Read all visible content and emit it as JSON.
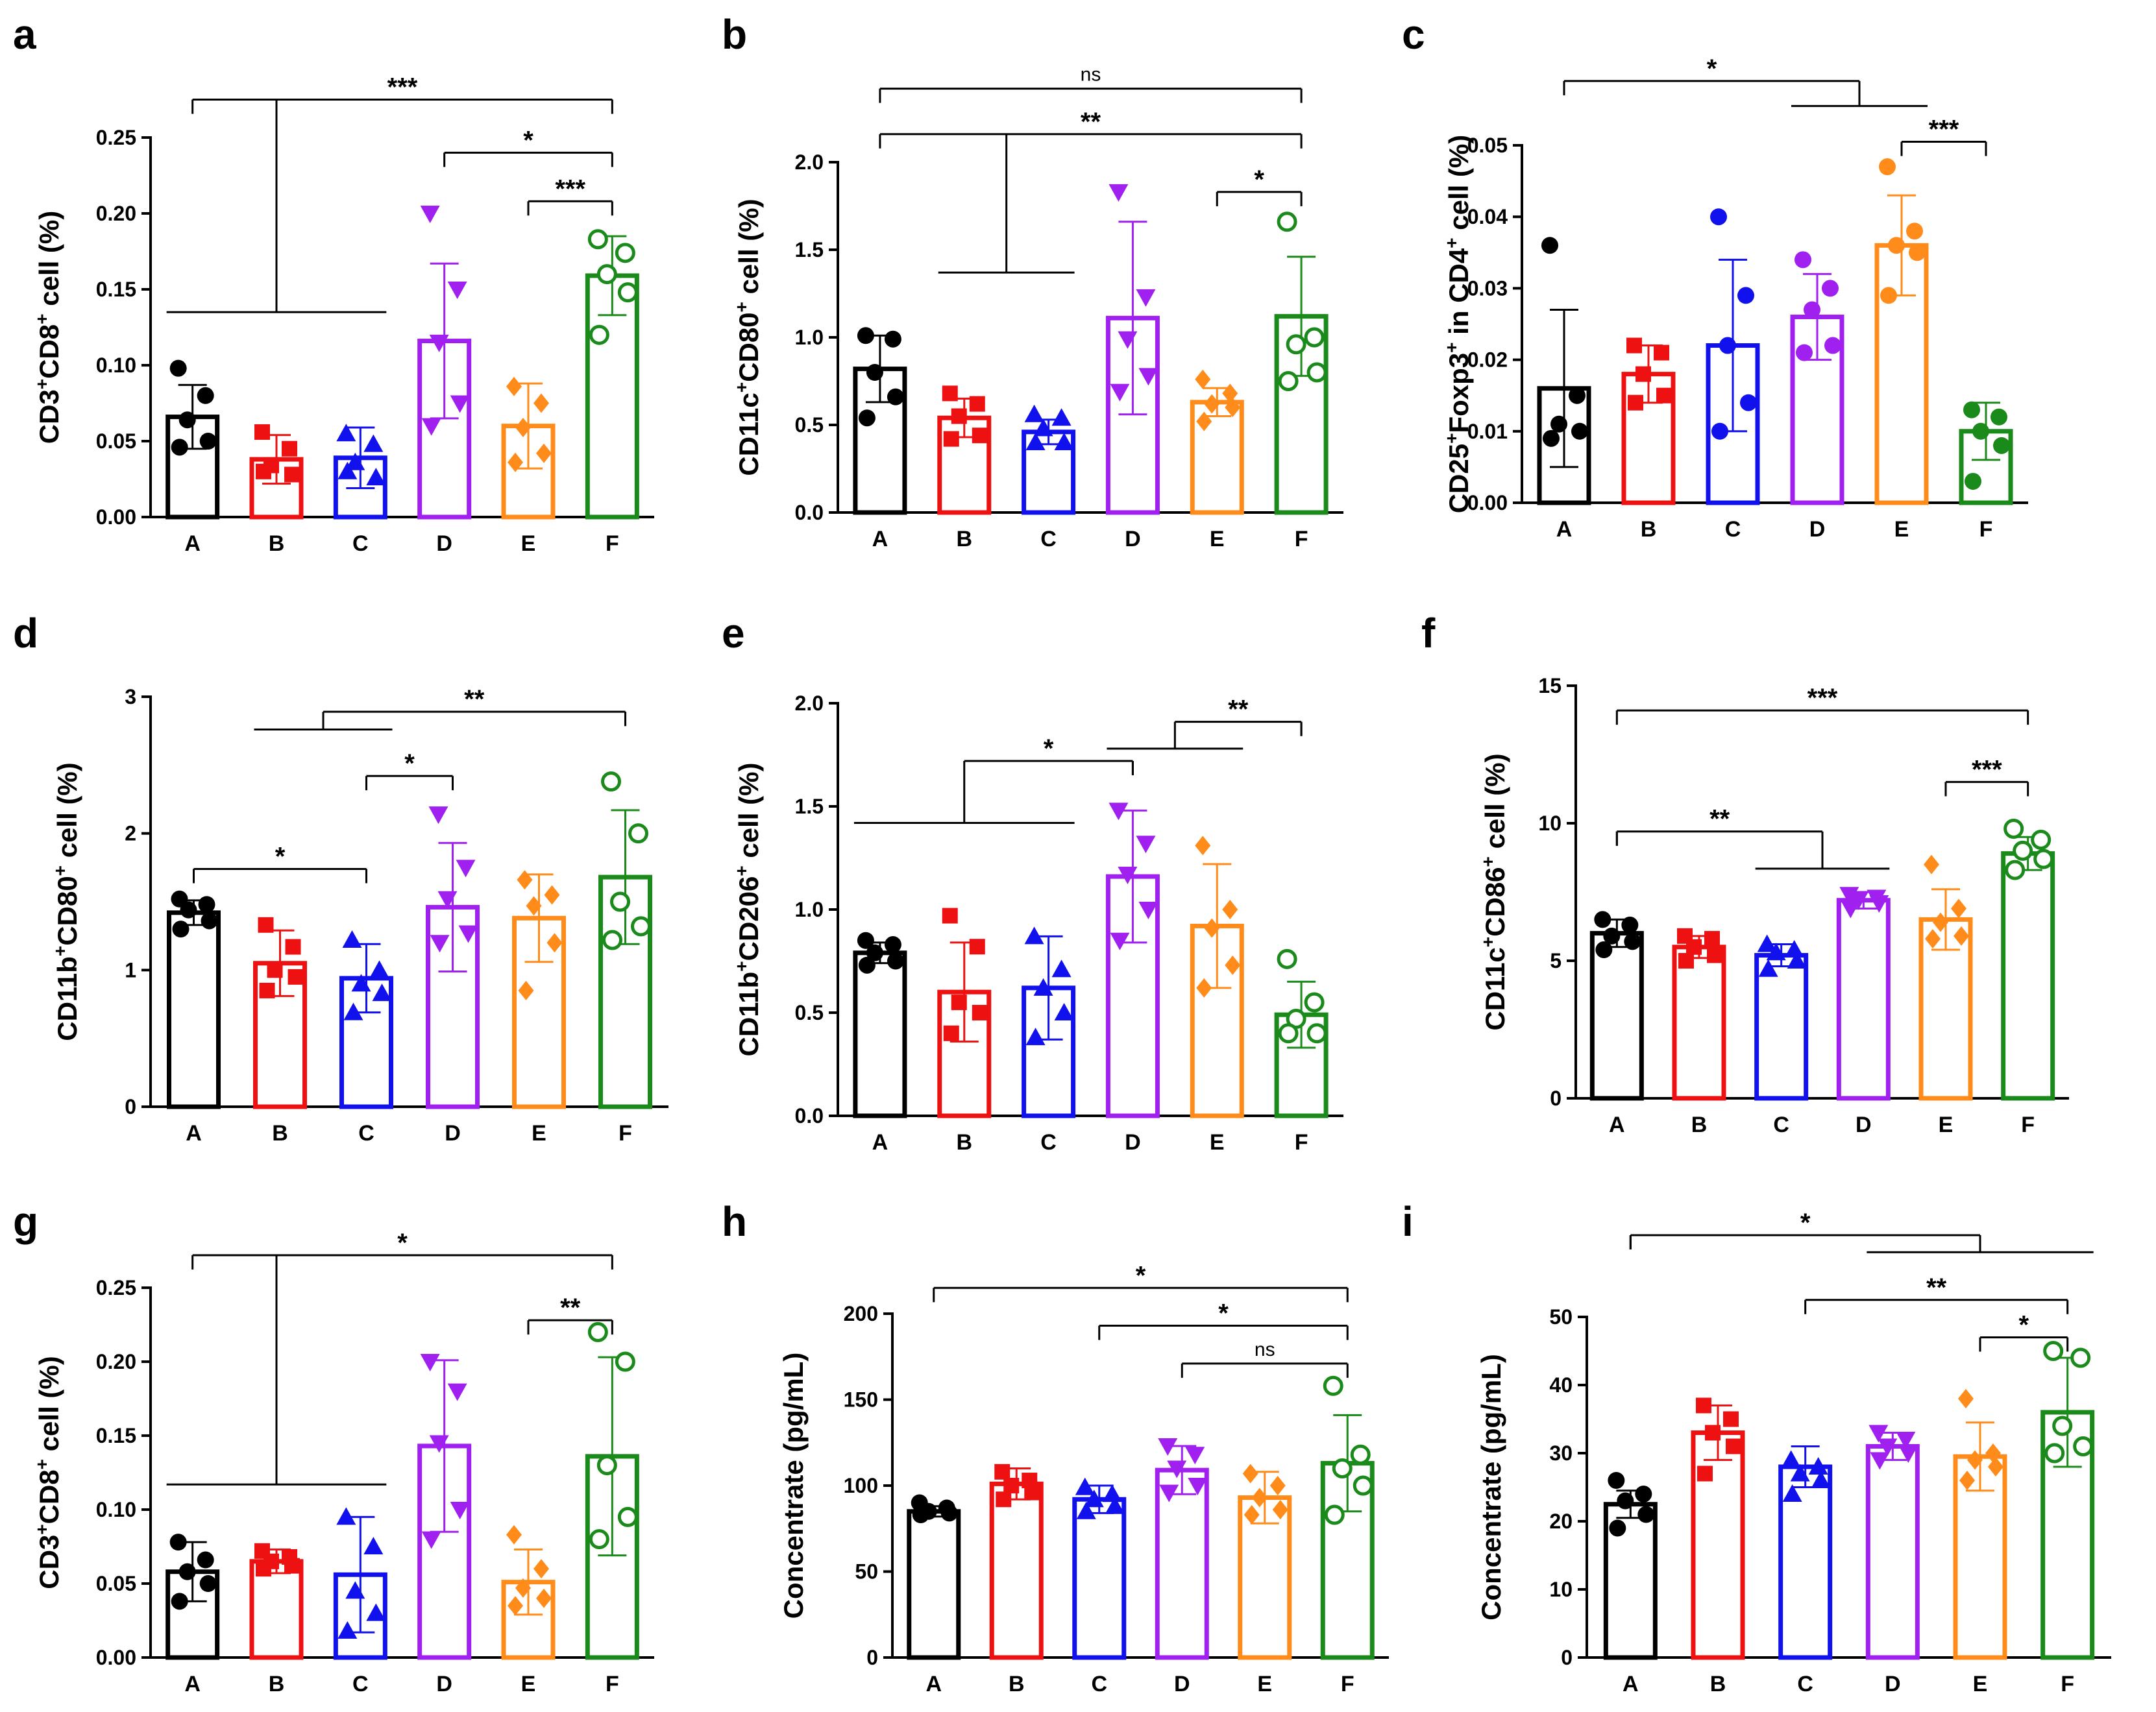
{
  "figure": {
    "panels": [
      "a",
      "b",
      "c",
      "d",
      "e",
      "f",
      "g",
      "h",
      "i"
    ]
  },
  "chart_data": [
    {
      "panel": "a",
      "type": "bar",
      "categories": [
        "A",
        "B",
        "C",
        "D",
        "E",
        "F"
      ],
      "values": [
        0.066,
        0.038,
        0.039,
        0.116,
        0.06,
        0.159
      ],
      "errors": [
        0.021,
        0.016,
        0.02,
        0.051,
        0.028,
        0.026
      ],
      "points": [
        [
          0.098,
          0.08,
          0.064,
          0.05,
          0.046
        ],
        [
          0.056,
          0.045,
          0.034,
          0.028,
          0.03
        ],
        [
          0.055,
          0.048,
          0.036,
          0.026,
          0.03
        ],
        [
          0.2,
          0.15,
          0.115,
          0.075,
          0.06
        ],
        [
          0.086,
          0.075,
          0.059,
          0.042,
          0.036
        ],
        [
          0.183,
          0.174,
          0.16,
          0.148,
          0.12
        ]
      ],
      "markers": [
        "circle",
        "square",
        "triangle",
        "tri-down",
        "diamond",
        "circle-open"
      ],
      "ylabel_parts": [
        [
          "CD3",
          ""
        ],
        [
          "+",
          "sup"
        ],
        [
          "CD8",
          ""
        ],
        [
          "+",
          "sup"
        ],
        [
          " cell (%)",
          ""
        ]
      ],
      "ylim": [
        0,
        0.25
      ],
      "ticks": [
        0,
        0.05,
        0.1,
        0.15,
        0.2,
        0.25
      ],
      "tick_labels": [
        "0.00",
        "0.05",
        "0.10",
        "0.15",
        "0.20",
        "0.25"
      ],
      "brackets": [
        {
          "from": 0,
          "to": 5,
          "y": 0.275,
          "group_from": 0,
          "group_to": 2,
          "group_y": 0.135,
          "label": "***"
        },
        {
          "from": 3,
          "to": 5,
          "y": 0.24,
          "label": "*"
        },
        {
          "from": 4,
          "to": 5,
          "y": 0.208,
          "label": "***"
        }
      ]
    },
    {
      "panel": "b",
      "type": "bar",
      "categories": [
        "A",
        "B",
        "C",
        "D",
        "E",
        "F"
      ],
      "values": [
        0.82,
        0.54,
        0.46,
        1.11,
        0.63,
        1.12
      ],
      "errors": [
        0.19,
        0.11,
        0.07,
        0.55,
        0.08,
        0.34
      ],
      "points": [
        [
          1.01,
          0.99,
          0.8,
          0.66,
          0.54
        ],
        [
          0.68,
          0.62,
          0.55,
          0.44,
          0.42
        ],
        [
          0.56,
          0.54,
          0.48,
          0.4,
          0.4
        ],
        [
          1.83,
          1.23,
          0.99,
          0.78,
          0.69
        ],
        [
          0.76,
          0.68,
          0.62,
          0.6,
          0.52
        ],
        [
          1.66,
          1.0,
          0.96,
          0.8,
          0.75
        ]
      ],
      "markers": [
        "circle",
        "square",
        "triangle",
        "tri-down",
        "diamond",
        "circle-open"
      ],
      "ylabel_parts": [
        [
          "CD11c",
          ""
        ],
        [
          "+",
          "sup"
        ],
        [
          "CD80",
          ""
        ],
        [
          "+",
          "sup"
        ],
        [
          " cell (%)",
          ""
        ]
      ],
      "ylim": [
        0,
        2.0
      ],
      "ticks": [
        0,
        0.5,
        1.0,
        1.5,
        2.0
      ],
      "tick_labels": [
        "0.0",
        "0.5",
        "1.0",
        "1.5",
        "2.0"
      ],
      "brackets": [
        {
          "from": 0,
          "to": 5,
          "y": 2.42,
          "label": "ns"
        },
        {
          "from": 0,
          "to": 5,
          "y": 2.16,
          "group_from": 1,
          "group_to": 2,
          "group_y": 1.37,
          "label": "**"
        },
        {
          "from": 4,
          "to": 5,
          "y": 1.83,
          "label": "*"
        }
      ]
    },
    {
      "panel": "c",
      "type": "bar",
      "categories": [
        "A",
        "B",
        "C",
        "D",
        "E",
        "F"
      ],
      "values": [
        0.016,
        0.018,
        0.022,
        0.026,
        0.036,
        0.01
      ],
      "errors": [
        0.011,
        0.004,
        0.012,
        0.006,
        0.007,
        0.004
      ],
      "points": [
        [
          0.036,
          0.015,
          0.011,
          0.01,
          0.009
        ],
        [
          0.022,
          0.021,
          0.018,
          0.015,
          0.014
        ],
        [
          0.04,
          0.029,
          0.022,
          0.014,
          0.01
        ],
        [
          0.034,
          0.03,
          0.027,
          0.022,
          0.021
        ],
        [
          0.047,
          0.038,
          0.036,
          0.035,
          0.029
        ],
        [
          0.013,
          0.012,
          0.01,
          0.008,
          0.003
        ]
      ],
      "markers": [
        "circle",
        "square",
        "circle",
        "circle",
        "circle",
        "circle"
      ],
      "ylabel_parts": [
        [
          "CD25",
          ""
        ],
        [
          "+",
          "sup"
        ],
        [
          "Foxp3",
          ""
        ],
        [
          "+",
          "sup"
        ],
        [
          " in CD4",
          ""
        ],
        [
          "+",
          "sup"
        ],
        [
          " cell (%)",
          ""
        ]
      ],
      "ylim": [
        0,
        0.05
      ],
      "ticks": [
        0,
        0.01,
        0.02,
        0.03,
        0.04,
        0.05
      ],
      "tick_labels": [
        "0.00",
        "0.01",
        "0.02",
        "0.03",
        "0.04",
        "0.05"
      ],
      "brackets": [
        {
          "from": 0,
          "to": 0,
          "y": 0.059,
          "group_from": 3,
          "group_to": 4,
          "group_y": 0.0555,
          "label": "*"
        },
        {
          "from": 4,
          "to": 5,
          "y": 0.0505,
          "label": "***"
        }
      ]
    },
    {
      "panel": "d",
      "type": "bar",
      "categories": [
        "A",
        "B",
        "C",
        "D",
        "E",
        "F"
      ],
      "values": [
        1.42,
        1.05,
        0.94,
        1.46,
        1.38,
        1.68
      ],
      "errors": [
        0.09,
        0.24,
        0.25,
        0.47,
        0.32,
        0.49
      ],
      "points": [
        [
          1.52,
          1.48,
          1.44,
          1.36,
          1.3
        ],
        [
          1.33,
          1.17,
          1.0,
          0.95,
          0.85
        ],
        [
          1.22,
          1.0,
          0.9,
          0.83,
          0.69
        ],
        [
          2.14,
          1.75,
          1.52,
          1.27,
          1.2
        ],
        [
          1.66,
          1.55,
          1.47,
          1.2,
          0.85
        ],
        [
          2.38,
          2.0,
          1.5,
          1.32,
          1.22
        ]
      ],
      "markers": [
        "circle",
        "square",
        "triangle",
        "tri-down",
        "diamond",
        "circle-open"
      ],
      "ylabel_parts": [
        [
          "CD11b",
          ""
        ],
        [
          "+",
          "sup"
        ],
        [
          "CD80",
          ""
        ],
        [
          "+",
          "sup"
        ],
        [
          " cell (%)",
          ""
        ]
      ],
      "ylim": [
        0,
        3
      ],
      "ticks": [
        0,
        1,
        2,
        3
      ],
      "tick_labels": [
        "0",
        "1",
        "2",
        "3"
      ],
      "brackets": [
        {
          "from": 5,
          "to": 5,
          "y": 2.89,
          "group_from": 1,
          "group_to": 2,
          "group_y": 2.76,
          "label": "**"
        },
        {
          "from": 2,
          "to": 3,
          "y": 2.42,
          "label": "*"
        },
        {
          "from": 0,
          "to": 2,
          "y": 1.74,
          "label": "*"
        }
      ]
    },
    {
      "panel": "e",
      "type": "bar",
      "categories": [
        "A",
        "B",
        "C",
        "D",
        "E",
        "F"
      ],
      "values": [
        0.79,
        0.6,
        0.62,
        1.16,
        0.92,
        0.49
      ],
      "errors": [
        0.05,
        0.24,
        0.25,
        0.32,
        0.3,
        0.16
      ],
      "points": [
        [
          0.85,
          0.83,
          0.79,
          0.75,
          0.73
        ],
        [
          0.97,
          0.82,
          0.55,
          0.5,
          0.4
        ],
        [
          0.87,
          0.71,
          0.62,
          0.5,
          0.38
        ],
        [
          1.48,
          1.32,
          1.17,
          1.0,
          0.85
        ],
        [
          1.31,
          1.0,
          0.91,
          0.73,
          0.62
        ],
        [
          0.76,
          0.55,
          0.47,
          0.4,
          0.4
        ]
      ],
      "markers": [
        "circle",
        "square",
        "triangle",
        "tri-down",
        "diamond",
        "circle-open"
      ],
      "ylabel_parts": [
        [
          "CD11b",
          ""
        ],
        [
          "+",
          "sup"
        ],
        [
          "CD206",
          ""
        ],
        [
          "+",
          "sup"
        ],
        [
          " cell (%)",
          ""
        ]
      ],
      "ylim": [
        0,
        2.0
      ],
      "ticks": [
        0,
        0.5,
        1.0,
        1.5,
        2.0
      ],
      "tick_labels": [
        "0.0",
        "0.5",
        "1.0",
        "1.5",
        "2.0"
      ],
      "brackets": [
        {
          "from": 3,
          "to": 3,
          "y": 1.72,
          "group_from": 0,
          "group_to": 2,
          "group_y": 1.42,
          "label": "*"
        },
        {
          "from": 5,
          "to": 5,
          "y": 1.91,
          "group_from": 3,
          "group_to": 4,
          "group_y": 1.78,
          "label": "**"
        }
      ]
    },
    {
      "panel": "f",
      "type": "bar",
      "categories": [
        "A",
        "B",
        "C",
        "D",
        "E",
        "F"
      ],
      "values": [
        6.0,
        5.5,
        5.2,
        7.2,
        6.5,
        8.9
      ],
      "errors": [
        0.5,
        0.4,
        0.4,
        0.3,
        1.1,
        0.6
      ],
      "points": [
        [
          6.5,
          6.3,
          5.9,
          5.7,
          5.4
        ],
        [
          5.9,
          5.8,
          5.5,
          5.2,
          5.0
        ],
        [
          5.6,
          5.4,
          5.3,
          5.0,
          4.7
        ],
        [
          7.4,
          7.3,
          7.2,
          7.1,
          6.9
        ],
        [
          8.5,
          6.9,
          6.4,
          5.9,
          5.8
        ],
        [
          9.8,
          9.4,
          9.0,
          8.7,
          8.3
        ]
      ],
      "markers": [
        "circle",
        "square",
        "triangle",
        "tri-down",
        "diamond",
        "circle-open"
      ],
      "ylabel_parts": [
        [
          "CD11c",
          ""
        ],
        [
          "+",
          "sup"
        ],
        [
          "CD86",
          ""
        ],
        [
          "+",
          "sup"
        ],
        [
          " cell (%)",
          ""
        ]
      ],
      "ylim": [
        0,
        15
      ],
      "ticks": [
        0,
        5,
        10,
        15
      ],
      "tick_labels": [
        "0",
        "5",
        "10",
        "15"
      ],
      "brackets": [
        {
          "from": 0,
          "to": 5,
          "y": 14.1,
          "label": "***"
        },
        {
          "from": 4,
          "to": 5,
          "y": 11.5,
          "label": "***"
        },
        {
          "from": 0,
          "to": 0,
          "y": 9.7,
          "group_from": 2,
          "group_to": 3,
          "group_y": 8.35,
          "label": "**"
        }
      ]
    },
    {
      "panel": "g",
      "type": "bar",
      "categories": [
        "A",
        "B",
        "C",
        "D",
        "E",
        "F"
      ],
      "values": [
        0.058,
        0.065,
        0.056,
        0.143,
        0.051,
        0.136
      ],
      "errors": [
        0.02,
        0.008,
        0.039,
        0.058,
        0.022,
        0.067
      ],
      "points": [
        [
          0.078,
          0.066,
          0.058,
          0.05,
          0.038
        ],
        [
          0.072,
          0.068,
          0.065,
          0.062,
          0.06
        ],
        [
          0.095,
          0.075,
          0.045,
          0.03,
          0.018
        ],
        [
          0.2,
          0.18,
          0.145,
          0.1,
          0.08
        ],
        [
          0.083,
          0.06,
          0.047,
          0.04,
          0.035
        ],
        [
          0.22,
          0.2,
          0.13,
          0.095,
          0.08
        ]
      ],
      "markers": [
        "circle",
        "square",
        "triangle",
        "tri-down",
        "diamond",
        "circle-open"
      ],
      "ylabel_parts": [
        [
          "CD3",
          ""
        ],
        [
          "+",
          "sup"
        ],
        [
          "CD8",
          ""
        ],
        [
          "+",
          "sup"
        ],
        [
          " cell (%)",
          ""
        ]
      ],
      "ylim": [
        0,
        0.25
      ],
      "ticks": [
        0,
        0.05,
        0.1,
        0.15,
        0.2,
        0.25
      ],
      "tick_labels": [
        "0.00",
        "0.05",
        "0.10",
        "0.15",
        "0.20",
        "0.25"
      ],
      "brackets": [
        {
          "from": 0,
          "to": 5,
          "y": 0.272,
          "group_from": 0,
          "group_to": 2,
          "group_y": 0.117,
          "label": "*"
        },
        {
          "from": 4,
          "to": 5,
          "y": 0.228,
          "label": "**"
        }
      ]
    },
    {
      "panel": "h",
      "type": "bar",
      "categories": [
        "A",
        "B",
        "C",
        "D",
        "E",
        "F"
      ],
      "values": [
        85,
        101,
        92,
        109,
        93,
        113
      ],
      "errors": [
        3,
        9,
        8,
        14,
        15,
        28
      ],
      "points": [
        [
          90,
          87,
          85,
          84,
          83
        ],
        [
          108,
          103,
          100,
          96,
          92
        ],
        [
          99,
          95,
          92,
          88,
          85
        ],
        [
          123,
          118,
          110,
          100,
          96
        ],
        [
          107,
          100,
          93,
          86,
          83
        ],
        [
          158,
          118,
          110,
          100,
          83
        ]
      ],
      "markers": [
        "circle",
        "square",
        "triangle",
        "tri-down",
        "diamond",
        "circle-open"
      ],
      "ylabel_parts": [
        [
          "Concentrate (pg/mL)",
          ""
        ]
      ],
      "ylim": [
        0,
        200
      ],
      "ticks": [
        0,
        50,
        100,
        150,
        200
      ],
      "tick_labels": [
        "0",
        "50",
        "100",
        "150",
        "200"
      ],
      "brackets": [
        {
          "from": 0,
          "to": 5,
          "y": 215,
          "label": "*"
        },
        {
          "from": 2,
          "to": 5,
          "y": 193,
          "label": "*"
        },
        {
          "from": 3,
          "to": 5,
          "y": 171,
          "label": "ns"
        }
      ]
    },
    {
      "panel": "i",
      "type": "bar",
      "categories": [
        "A",
        "B",
        "C",
        "D",
        "E",
        "F"
      ],
      "values": [
        22.5,
        33,
        28,
        31,
        29.5,
        36
      ],
      "errors": [
        2,
        4,
        3,
        2,
        5,
        8
      ],
      "points": [
        [
          26,
          24,
          23,
          21,
          19
        ],
        [
          37,
          35,
          33,
          31,
          27
        ],
        [
          29,
          28,
          27,
          26,
          24
        ],
        [
          33,
          32,
          31,
          30,
          29
        ],
        [
          38,
          30,
          29,
          28,
          26
        ],
        [
          45,
          44,
          34,
          31,
          30
        ]
      ],
      "markers": [
        "circle",
        "square",
        "triangle",
        "tri-down",
        "diamond",
        "circle-open"
      ],
      "ylabel_parts": [
        [
          "Concentrate (pg/mL)",
          ""
        ]
      ],
      "ylim": [
        0,
        50
      ],
      "ticks": [
        0,
        10,
        20,
        30,
        40,
        50
      ],
      "tick_labels": [
        "0",
        "10",
        "20",
        "30",
        "40",
        "50"
      ],
      "brackets": [
        {
          "from": 0,
          "to": 0,
          "y": 62,
          "group_from": 3,
          "group_to": 5,
          "group_y": 59.5,
          "label": "*"
        },
        {
          "from": 2,
          "to": 5,
          "y": 52.5,
          "label": "**"
        },
        {
          "from": 4,
          "to": 5,
          "y": 47,
          "label": "*"
        }
      ]
    }
  ],
  "colors": [
    "#000000",
    "#ee1111",
    "#1111ee",
    "#a020f0",
    "#ff8c1a",
    "#1a8a1a"
  ]
}
